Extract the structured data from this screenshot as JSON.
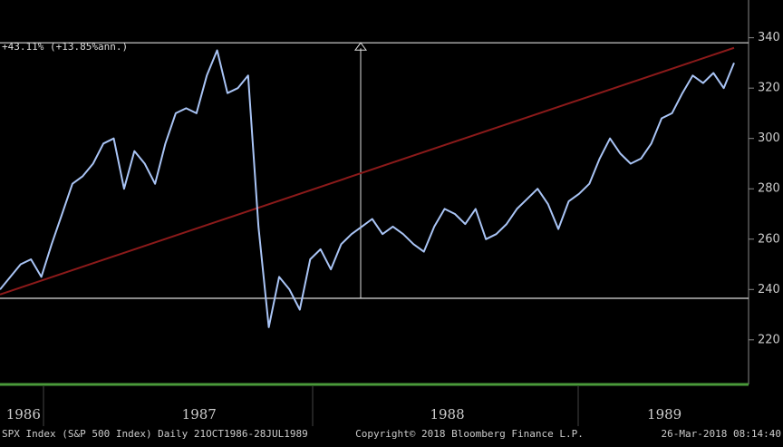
{
  "chart_data": {
    "type": "line",
    "annotation": "+43.11% (+13.85%ann.)",
    "categories": [
      null,
      null,
      "1986",
      null,
      null,
      null,
      null,
      null,
      null,
      null,
      null,
      null,
      null,
      null,
      null,
      null,
      null,
      null,
      null,
      "1987",
      null,
      null,
      null,
      null,
      null,
      null,
      null,
      null,
      null,
      null,
      null,
      null,
      null,
      null,
      null,
      null,
      null,
      null,
      null,
      null,
      null,
      null,
      null,
      "1988",
      null,
      null,
      null,
      null,
      null,
      null,
      null,
      null,
      null,
      null,
      null,
      null,
      null,
      null,
      null,
      null,
      null,
      null,
      null,
      null,
      "1989",
      null,
      null,
      null,
      null,
      null,
      null,
      null
    ],
    "values": [
      240,
      245,
      250,
      252,
      245,
      258,
      270,
      282,
      285,
      290,
      298,
      300,
      280,
      295,
      290,
      282,
      298,
      310,
      312,
      310,
      325,
      335,
      318,
      320,
      325,
      265,
      225,
      245,
      240,
      232,
      252,
      256,
      248,
      258,
      262,
      265,
      268,
      262,
      265,
      262,
      258,
      255,
      265,
      272,
      270,
      266,
      272,
      260,
      262,
      266,
      272,
      276,
      280,
      274,
      264,
      275,
      278,
      282,
      292,
      300,
      294,
      290,
      292,
      298,
      308,
      310,
      318,
      325,
      322,
      326,
      320,
      330
    ],
    "color": "#a9c4f5",
    "reference_lines": [
      338,
      236.5
    ],
    "trend": [
      238,
      336
    ],
    "trend_color": "#8b1a1a",
    "ylim": [
      203,
      355
    ],
    "yticks": [
      220,
      240,
      260,
      280,
      300,
      320,
      340
    ],
    "footer": {
      "left": "SPX Index (S&P 500 Index)  Daily 21OCT1986-28JUL1989",
      "center": "Copyright© 2018 Bloomberg Finance L.P.",
      "right": "26-Mar-2018 08:14:40"
    }
  }
}
